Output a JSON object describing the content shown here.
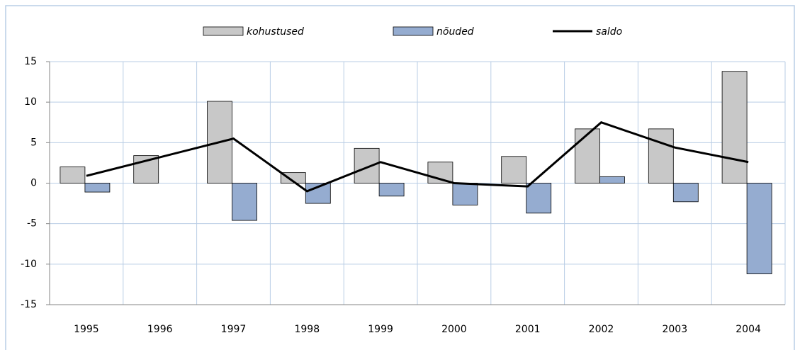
{
  "chart_data": {
    "type": "bar",
    "categories": [
      "1995",
      "1996",
      "1997",
      "1998",
      "1999",
      "2000",
      "2001",
      "2002",
      "2003",
      "2004"
    ],
    "series": [
      {
        "name": "kohustused",
        "color": "#c8c8c8",
        "values": [
          2.0,
          3.4,
          10.1,
          1.3,
          4.3,
          2.6,
          3.3,
          6.7,
          6.7,
          13.8
        ]
      },
      {
        "name": "nõuded",
        "color": "#95acd0",
        "values": [
          -1.1,
          0,
          -4.6,
          -2.5,
          -1.6,
          -2.7,
          -3.7,
          0.8,
          -2.3,
          -11.2
        ]
      },
      {
        "name": "saldo",
        "color": "#000000",
        "kind": "line",
        "values": [
          0.9,
          3.2,
          5.5,
          -1.0,
          2.6,
          0.0,
          -0.4,
          7.5,
          4.4,
          2.6
        ]
      }
    ],
    "ylim": [
      -15,
      15
    ],
    "yticks": [
      -15,
      -10,
      -5,
      0,
      5,
      10,
      15
    ],
    "grid": true,
    "legend": "top"
  }
}
